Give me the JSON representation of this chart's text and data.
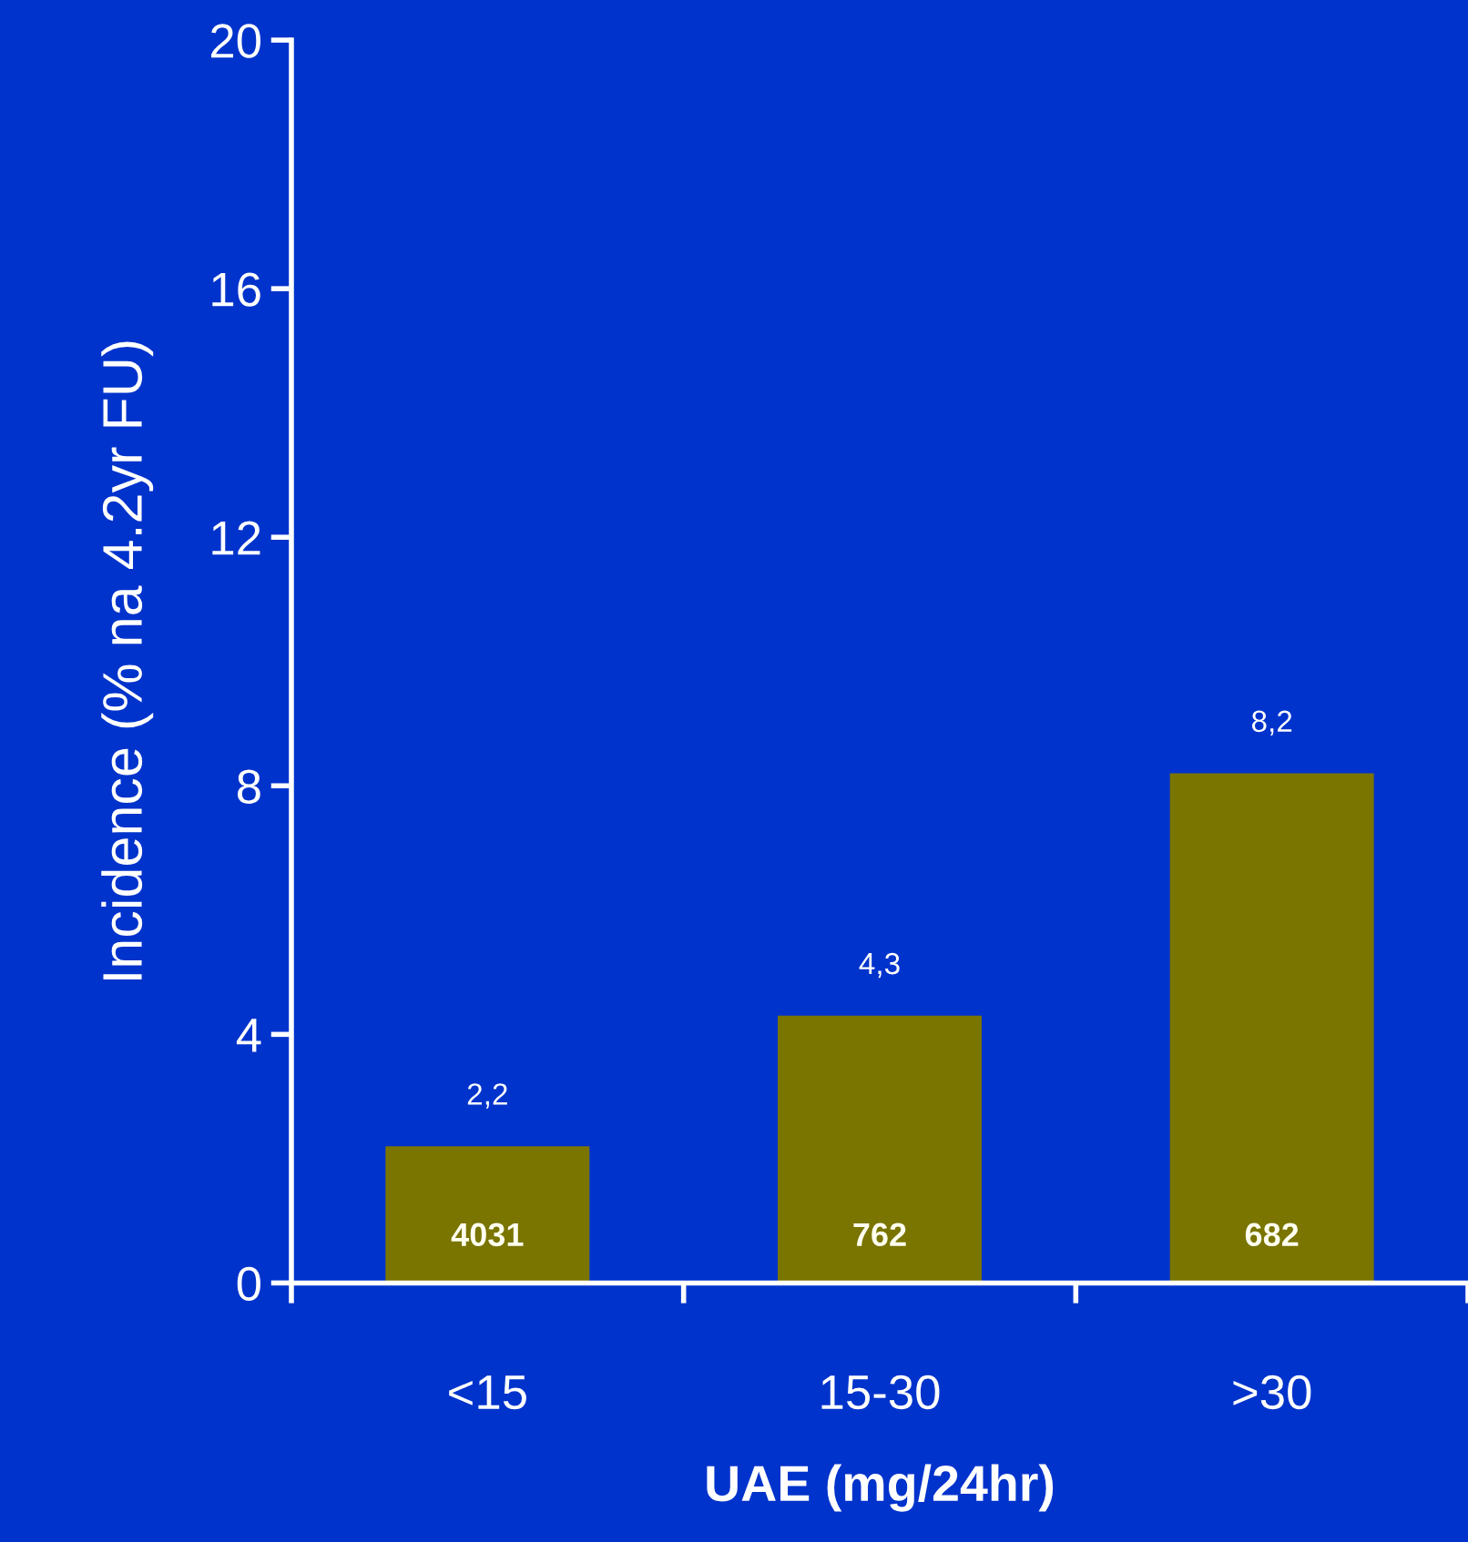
{
  "chart_data": {
    "type": "bar",
    "xlabel": "UAE (mg/24hr)",
    "ylabel": "Incidence (% na 4.2yr FU)",
    "categories": [
      "<15",
      "15-30",
      ">30"
    ],
    "series": [
      {
        "color": "#7a7400",
        "values": [
          2.2,
          4.3,
          8.2
        ],
        "value_labels": [
          "2,2",
          "4,3",
          "8,2"
        ]
      }
    ],
    "ylim": [
      0,
      20
    ],
    "yticks": [
      0,
      4,
      8,
      12,
      16,
      20
    ],
    "grid": false,
    "legend": false,
    "annotations": [
      "4031",
      "762",
      "682"
    ]
  }
}
